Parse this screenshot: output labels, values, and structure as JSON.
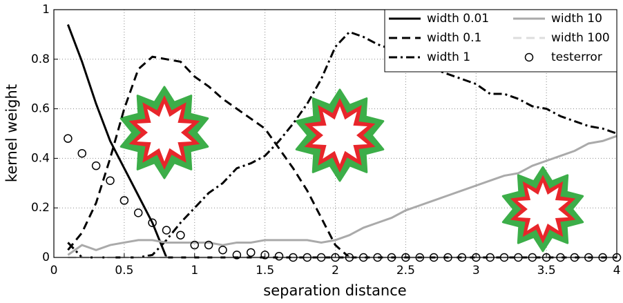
{
  "chart_data": {
    "type": "line",
    "xlabel": "separation distance",
    "ylabel": "kernel weight",
    "x": [
      0.1,
      0.2,
      0.3,
      0.4,
      0.5,
      0.6,
      0.7,
      0.8,
      0.9,
      1.0,
      1.1,
      1.2,
      1.3,
      1.4,
      1.5,
      1.6,
      1.7,
      1.8,
      1.9,
      2.0,
      2.1,
      2.2,
      2.3,
      2.4,
      2.5,
      2.6,
      2.7,
      2.8,
      2.9,
      3.0,
      3.1,
      3.2,
      3.3,
      3.4,
      3.5,
      3.6,
      3.7,
      3.8,
      3.9,
      4.0
    ],
    "series": [
      {
        "name": "width 0.01",
        "color": "#000000",
        "linestyle": "solid",
        "values": [
          0.94,
          0.79,
          0.62,
          0.47,
          0.36,
          0.25,
          0.14,
          0,
          0,
          0,
          0,
          0,
          0,
          0,
          0,
          0,
          0,
          0,
          0,
          0,
          0,
          0,
          0,
          0,
          0,
          0,
          0,
          0,
          0,
          0,
          0,
          0,
          0,
          0,
          0,
          0,
          0,
          0,
          0,
          0
        ]
      },
      {
        "name": "width 0.1",
        "color": "#000000",
        "linestyle": "dashed",
        "values": [
          0.03,
          0.1,
          0.22,
          0.4,
          0.6,
          0.76,
          0.81,
          0.8,
          0.79,
          0.73,
          0.69,
          0.64,
          0.6,
          0.56,
          0.52,
          0.44,
          0.36,
          0.27,
          0.16,
          0.05,
          0,
          0,
          0,
          0,
          0,
          0,
          0,
          0,
          0,
          0,
          0,
          0,
          0,
          0,
          0,
          0,
          0,
          0,
          0,
          0
        ]
      },
      {
        "name": "width 1",
        "color": "#000000",
        "linestyle": "dashdot",
        "values": [
          0.06,
          0,
          0,
          0,
          0,
          0,
          0.01,
          0.07,
          0.14,
          0.2,
          0.26,
          0.3,
          0.36,
          0.38,
          0.41,
          0.47,
          0.54,
          0.62,
          0.72,
          0.85,
          0.91,
          0.89,
          0.86,
          0.84,
          0.82,
          0.79,
          0.76,
          0.74,
          0.72,
          0.7,
          0.66,
          0.66,
          0.64,
          0.61,
          0.6,
          0.57,
          0.55,
          0.53,
          0.52,
          0.5
        ]
      },
      {
        "name": "width 10",
        "color": "#aaaaaa",
        "linestyle": "solid",
        "values": [
          0.01,
          0.05,
          0.03,
          0.05,
          0.06,
          0.07,
          0.07,
          0.06,
          0.06,
          0.06,
          0.06,
          0.05,
          0.06,
          0.06,
          0.07,
          0.07,
          0.07,
          0.07,
          0.06,
          0.07,
          0.09,
          0.12,
          0.14,
          0.16,
          0.19,
          0.21,
          0.23,
          0.25,
          0.27,
          0.29,
          0.31,
          0.33,
          0.34,
          0.37,
          0.39,
          0.41,
          0.43,
          0.46,
          0.47,
          0.49
        ]
      },
      {
        "name": "width 100",
        "color": "#dddddd",
        "linestyle": "dashed",
        "values": [
          0,
          0,
          0,
          0,
          0,
          0,
          0,
          0,
          0,
          0,
          0,
          0,
          0,
          0,
          0,
          0,
          0,
          0,
          0,
          0,
          0,
          0,
          0,
          0,
          0,
          0,
          0,
          0,
          0,
          0,
          0,
          0,
          0,
          0,
          0,
          0,
          0,
          0,
          0,
          0
        ]
      },
      {
        "name": "testerror",
        "color": "#000000",
        "linestyle": "none",
        "marker": "circle",
        "values": [
          0.48,
          0.42,
          0.37,
          0.31,
          0.23,
          0.18,
          0.14,
          0.11,
          0.09,
          0.05,
          0.05,
          0.03,
          0.01,
          0.02,
          0.01,
          0.005,
          0,
          0,
          0,
          0,
          0,
          0,
          0,
          0,
          0,
          0,
          0,
          0,
          0,
          0,
          0,
          0,
          0,
          0,
          0,
          0,
          0,
          0,
          0,
          0
        ]
      }
    ],
    "xlim": [
      0,
      4
    ],
    "ylim": [
      0,
      1
    ],
    "xticks": [
      0,
      0.5,
      1,
      1.5,
      2,
      2.5,
      3,
      3.5,
      4
    ],
    "yticks": [
      0,
      0.2,
      0.4,
      0.6,
      0.8,
      1
    ],
    "grid": true,
    "legend": "upper right",
    "legend_columns": 2
  }
}
